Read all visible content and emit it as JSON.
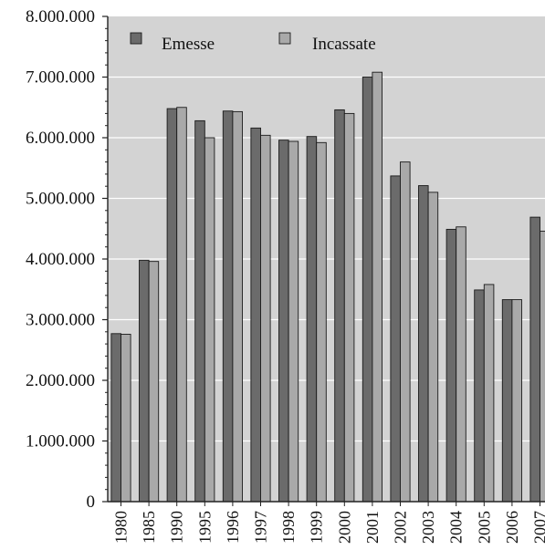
{
  "chart_data": {
    "type": "bar",
    "title": "",
    "xlabel": "",
    "ylabel": "",
    "ylim": [
      0,
      8000000
    ],
    "y_ticks": [
      "0",
      "1.000.000",
      "2.000.000",
      "3.000.000",
      "4.000.000",
      "5.000.000",
      "6.000.000",
      "7.000.000",
      "8.000.000"
    ],
    "grid": true,
    "legend_position": "top-left",
    "categories": [
      "1980",
      "1985",
      "1990",
      "1995",
      "1996",
      "1997",
      "1998",
      "1999",
      "2000",
      "2001",
      "2002",
      "2003",
      "2004",
      "2005",
      "2006",
      "2007"
    ],
    "series": [
      {
        "name": "Emesse",
        "color": "#6b6b6b",
        "values": [
          2770000,
          3980000,
          6480000,
          6280000,
          6440000,
          6160000,
          5960000,
          6020000,
          6460000,
          7000000,
          5370000,
          5210000,
          4490000,
          3490000,
          3330000,
          4690000
        ]
      },
      {
        "name": "Incassate",
        "color": "#a9a9a9",
        "values": [
          2760000,
          3960000,
          6500000,
          6000000,
          6430000,
          6040000,
          5940000,
          5920000,
          6400000,
          7080000,
          5600000,
          5100000,
          4530000,
          3580000,
          3330000,
          4460000
        ]
      }
    ]
  },
  "colors": {
    "plot_background": "#d3d3d3",
    "gridline": "#ffffff"
  }
}
